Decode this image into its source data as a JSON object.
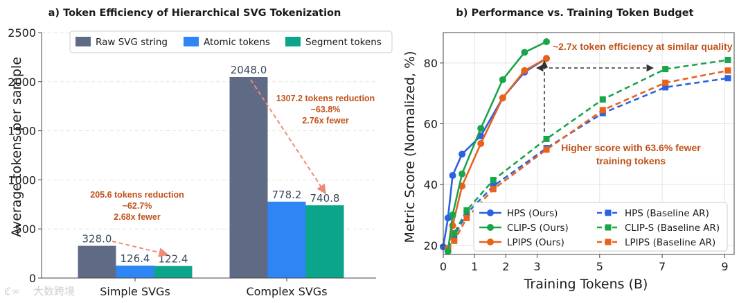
{
  "chart_data": [
    {
      "type": "bar",
      "title": "a) Token Efficiency of Hierarchical SVG Tokenization",
      "ylabel": "Average tokens per sample",
      "xlabel": "",
      "categories": [
        "Simple SVGs",
        "Complex SVGs"
      ],
      "ylim": [
        0,
        2500
      ],
      "yticks": [
        "0",
        "500",
        "1000",
        "1500",
        "2000",
        "2500"
      ],
      "series": [
        {
          "name": "Raw SVG string",
          "color": "#5f6b85",
          "values": [
            328.0,
            2048.0
          ],
          "labels": [
            "328.0",
            "2048.0"
          ]
        },
        {
          "name": "Atomic tokens",
          "color": "#2e86f5",
          "values": [
            126.4,
            778.2
          ],
          "labels": [
            "126.4",
            "778.2"
          ]
        },
        {
          "name": "Segment tokens",
          "color": "#0aa58a",
          "values": [
            122.4,
            740.8
          ],
          "labels": [
            "122.4",
            "740.8"
          ]
        }
      ],
      "legend_position": "top-right",
      "grid": "horizontal-dashed",
      "annotations": [
        {
          "lines": [
            "205.6 tokens reduction",
            "−62.7%",
            "2.68x fewer"
          ]
        },
        {
          "lines": [
            "1307.2 tokens reduction",
            "−63.8%",
            "2.76x fewer"
          ]
        }
      ]
    },
    {
      "type": "line",
      "title": "b) Performance vs. Training Token Budget",
      "xlabel": "Training Tokens (B)",
      "ylabel": "Metric Score (Normalized, %)",
      "xlim": [
        0,
        9.3
      ],
      "ylim": [
        17,
        90
      ],
      "xticks": [
        0,
        1,
        2,
        3,
        5,
        7,
        9
      ],
      "yticks": [
        20,
        40,
        60,
        80
      ],
      "grid": "both",
      "legend_position": "bottom-right",
      "series": [
        {
          "name": "HPS (Ours)",
          "color": "#2a62e0",
          "style": "solid",
          "marker": "circle",
          "x": [
            0.0,
            0.15,
            0.3,
            0.6,
            1.2,
            1.9,
            2.6,
            3.3
          ],
          "y": [
            19.5,
            29,
            43,
            50,
            56,
            68.5,
            77,
            81.5
          ]
        },
        {
          "name": "CLIP-S (Ours)",
          "color": "#19a54a",
          "style": "solid",
          "marker": "circle",
          "x": [
            0.15,
            0.3,
            0.6,
            1.2,
            1.9,
            2.6,
            3.3
          ],
          "y": [
            18,
            30,
            43.5,
            58.5,
            74.5,
            83.5,
            87
          ]
        },
        {
          "name": "LPIPS (Ours)",
          "color": "#e8621c",
          "style": "solid",
          "marker": "circle",
          "x": [
            0.15,
            0.3,
            0.6,
            1.2,
            1.9,
            2.6,
            3.3
          ],
          "y": [
            19,
            26.5,
            39.5,
            53.5,
            68.5,
            77.5,
            81.5
          ]
        },
        {
          "name": "HPS (Baseline AR)",
          "color": "#2a62e0",
          "style": "dashed",
          "marker": "square",
          "x": [
            0.15,
            0.35,
            0.75,
            1.6,
            3.3,
            5.1,
            7.1,
            9.1
          ],
          "y": [
            19,
            23,
            30.5,
            39.5,
            52,
            63.5,
            72,
            75
          ]
        },
        {
          "name": "CLIP-S (Baseline AR)",
          "color": "#19a54a",
          "style": "dashed",
          "marker": "square",
          "x": [
            0.15,
            0.35,
            0.75,
            1.6,
            3.3,
            5.1,
            7.1,
            9.1
          ],
          "y": [
            19,
            24,
            31.5,
            41.5,
            55,
            68,
            78,
            81
          ]
        },
        {
          "name": "LPIPS (Baseline AR)",
          "color": "#e8621c",
          "style": "dashed",
          "marker": "square",
          "x": [
            0.15,
            0.35,
            0.75,
            1.6,
            3.3,
            5.1,
            7.1,
            9.1
          ],
          "y": [
            18.5,
            21.5,
            29,
            38.5,
            51.5,
            64.5,
            73.5,
            77.5
          ]
        }
      ],
      "annotations": [
        {
          "text": "~2.7x token efficiency at similar quality"
        },
        {
          "lines": [
            "Higher score with 63.6% fewer",
            "training tokens"
          ]
        }
      ]
    }
  ],
  "watermark": "大数跨境"
}
